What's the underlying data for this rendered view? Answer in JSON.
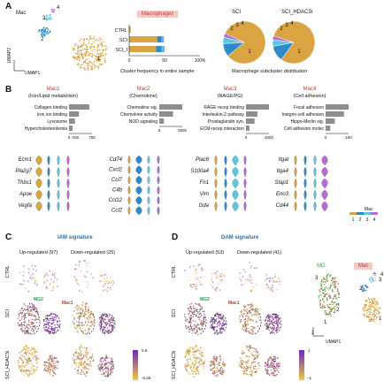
{
  "panels": {
    "A": "A",
    "B": "B",
    "C": "C",
    "D": "D"
  },
  "colors": {
    "c1": "#d9a441",
    "c2": "#2e8bc9",
    "c3": "#5bc8e0",
    "c4": "#b86ad6",
    "red": "#c0392b",
    "blue": "#1a73b8"
  },
  "panelA": {
    "umap_label": "Mac",
    "umap_x": "UMAP1",
    "umap_y": "UMAP2",
    "cluster_labels": [
      "1",
      "2",
      "3",
      "4"
    ],
    "bar_title": "Macrophages",
    "bar_caption": "Cluster frequency in entire sample",
    "pie_caption": "Macrophage subcluster distribution",
    "pie_titles": [
      "SCI",
      "SCI_HDAC3i"
    ]
  },
  "chart_data": [
    {
      "type": "bar",
      "orientation": "horizontal-stacked",
      "categories": [
        "CTRL",
        "SCI",
        "SCI_I"
      ],
      "xlim": [
        0,
        100
      ],
      "x_ticks": [
        "0",
        "50",
        "100%"
      ],
      "series": [
        {
          "name": "1",
          "color": "#d9a441",
          "values": [
            2,
            40,
            38
          ]
        },
        {
          "name": "2",
          "color": "#2e8bc9",
          "values": [
            0,
            6,
            8
          ]
        },
        {
          "name": "3",
          "color": "#5bc8e0",
          "values": [
            0,
            2,
            3
          ]
        },
        {
          "name": "4",
          "color": "#b86ad6",
          "values": [
            0,
            1,
            1
          ]
        }
      ]
    },
    {
      "type": "pie",
      "title": "SCI",
      "labels": [
        "1",
        "2",
        "3",
        "4"
      ],
      "values": [
        82,
        10,
        5,
        3
      ]
    },
    {
      "type": "pie",
      "title": "SCI_HDAC3i",
      "labels": [
        "1",
        "2",
        "3",
        "4"
      ],
      "values": [
        80,
        12,
        5,
        3
      ]
    },
    {
      "type": "bar",
      "orientation": "horizontal",
      "title": "Mac1",
      "categories": [
        "Collagen binding",
        "Iron ion binding",
        "Lysosome",
        "Hypercholesterolemia"
      ],
      "values": [
        620,
        300,
        180,
        110
      ],
      "xlim": [
        0,
        700
      ],
      "x_ticks": [
        "0",
        "200",
        "700"
      ]
    },
    {
      "type": "bar",
      "orientation": "horizontal",
      "title": "Mac2",
      "categories": [
        "Chemokine sig.",
        "Chemokine activity",
        "NOD signaling"
      ],
      "values": [
        2500,
        1500,
        500
      ],
      "xlim": [
        0,
        2500
      ],
      "x_ticks": [
        "0",
        "2500"
      ]
    },
    {
      "type": "bar",
      "orientation": "horizontal",
      "title": "Mac3",
      "categories": [
        "RAGE recep binding",
        "Interleukin-2 pathway",
        "Prostaglandin syn.",
        "ECM-recep interaction"
      ],
      "values": [
        4000,
        2000,
        1500,
        600
      ],
      "xlim": [
        0,
        4000
      ],
      "x_ticks": [
        "0",
        "4000"
      ]
    },
    {
      "type": "bar",
      "orientation": "horizontal",
      "title": "Mac4",
      "categories": [
        "Focal adhesion",
        "Integrin-cell adhesion",
        "Hippo-Merlin sig.",
        "Cell adhesion molec"
      ],
      "values": [
        150,
        120,
        60,
        30
      ],
      "xlim": [
        0,
        150
      ],
      "x_ticks": [
        "0",
        "150"
      ]
    }
  ],
  "panelB": {
    "modules": [
      {
        "name": "Mac1",
        "sub": "(Iron/Lipid metabolism)",
        "genes": [
          "Ecm1",
          "Pla2g7",
          "Thbs1",
          "Apoe",
          "Vegfa"
        ]
      },
      {
        "name": "Mac2",
        "sub": "(Chemokine)",
        "genes": [
          "Cd74",
          "Cxcl2",
          "Ccl7",
          "C4b",
          "Ccl12",
          "Ccl2"
        ]
      },
      {
        "name": "Mac3",
        "sub": "(RAGE/PG)",
        "genes": [
          "Plac8",
          "S100a4",
          "Fn1",
          "Vim",
          "Gda"
        ]
      },
      {
        "name": "Mac4",
        "sub": "(Cell adhesion)",
        "genes": [
          "Itgal",
          "Itga4",
          "Stap1",
          "Eno3",
          "Cd44"
        ]
      }
    ],
    "legend_title": "Mac",
    "legend_labels": [
      "1",
      "2",
      "3",
      "4"
    ]
  },
  "panelC": {
    "title": "IAM signature",
    "col_up": "Up-regulated (97)",
    "col_down": "Down-regulated (25)",
    "rows": [
      "CTRL",
      "SCI",
      "SCI_HDAC3i"
    ],
    "mg2": "MG2",
    "mac1": "Mac1",
    "scale_max": "0.5",
    "scale_min": "-0.25"
  },
  "panelD": {
    "title": "DAM signature",
    "col_up": "Up-regulated (53)",
    "col_down": "Down-regulated (41)",
    "rows": [
      "CTRL",
      "SCI",
      "SCI_HDAC3i"
    ],
    "mg2": "MG2",
    "mac1": "Mac1",
    "scale_max": "1",
    "scale_min": "-1",
    "mg_label": "MG",
    "mac_label": "Mac",
    "umap_x": "UMAP1",
    "umap_y": "2",
    "cluster_labels": [
      "1",
      "2",
      "3",
      "4"
    ],
    "mg_clusters": [
      "3",
      "1",
      "2"
    ]
  }
}
